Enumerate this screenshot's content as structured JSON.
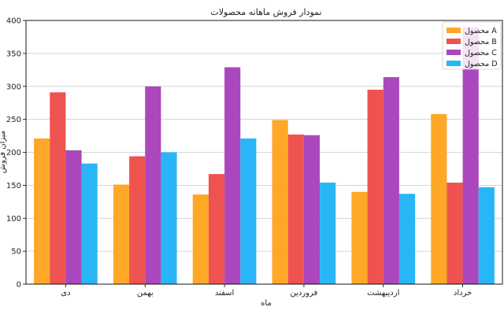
{
  "chart_data": {
    "type": "bar",
    "title": "نمودار فروش ماهانه محصولات",
    "xlabel": "ماه",
    "ylabel": "میزان فروش",
    "categories": [
      "دی",
      "بهمن",
      "اسفند",
      "فروردین",
      "اردیبهشت",
      "خرداد"
    ],
    "ylim": [
      0,
      400
    ],
    "yticks": [
      0,
      50,
      100,
      150,
      200,
      250,
      300,
      350,
      400
    ],
    "grid": true,
    "legend_position": "top-right",
    "series": [
      {
        "name": "محصول A",
        "color": "#FFA726",
        "values": [
          221,
          151,
          136,
          249,
          140,
          258
        ]
      },
      {
        "name": "محصول B",
        "color": "#EF5350",
        "values": [
          291,
          194,
          167,
          227,
          295,
          154
        ]
      },
      {
        "name": "محصول C",
        "color": "#AB47BC",
        "values": [
          203,
          300,
          329,
          226,
          314,
          390
        ]
      },
      {
        "name": "محصول D",
        "color": "#29B6F6",
        "values": [
          183,
          200,
          221,
          154,
          137,
          147
        ]
      }
    ]
  }
}
